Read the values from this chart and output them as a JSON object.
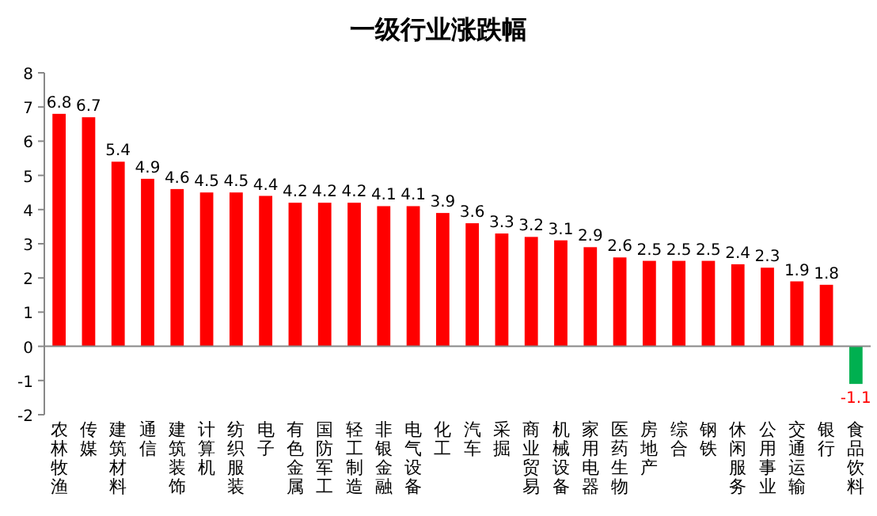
{
  "chart_data": {
    "type": "bar",
    "title": "一级行业涨跌幅",
    "categories": [
      "农林牧渔",
      "传媒",
      "建筑材料",
      "通信",
      "建筑装饰",
      "计算机",
      "纺织服装",
      "电子",
      "有色金属",
      "国防军工",
      "轻工制造",
      "非银金融",
      "电气设备",
      "化工",
      "汽车",
      "采掘",
      "商业贸易",
      "机械设备",
      "家用电器",
      "医药生物",
      "房地产",
      "综合",
      "钢铁",
      "休闲服务",
      "公用事业",
      "交通运输",
      "银行",
      "食品饮料"
    ],
    "values": [
      6.8,
      6.7,
      5.4,
      4.9,
      4.6,
      4.5,
      4.5,
      4.4,
      4.2,
      4.2,
      4.2,
      4.1,
      4.1,
      3.9,
      3.6,
      3.3,
      3.2,
      3.1,
      2.9,
      2.6,
      2.5,
      2.5,
      2.5,
      2.4,
      2.3,
      1.9,
      1.8,
      -1.1
    ],
    "colors": [
      "#ff0000",
      "#ff0000",
      "#ff0000",
      "#ff0000",
      "#ff0000",
      "#ff0000",
      "#ff0000",
      "#ff0000",
      "#ff0000",
      "#ff0000",
      "#ff0000",
      "#ff0000",
      "#ff0000",
      "#ff0000",
      "#ff0000",
      "#ff0000",
      "#ff0000",
      "#ff0000",
      "#ff0000",
      "#ff0000",
      "#ff0000",
      "#ff0000",
      "#ff0000",
      "#ff0000",
      "#ff0000",
      "#ff0000",
      "#ff0000",
      "#00b050"
    ],
    "ylim": [
      -2,
      8
    ],
    "yticks": [
      -2,
      -1,
      0,
      1,
      2,
      3,
      4,
      5,
      6,
      7,
      8
    ],
    "data_labels": true
  }
}
